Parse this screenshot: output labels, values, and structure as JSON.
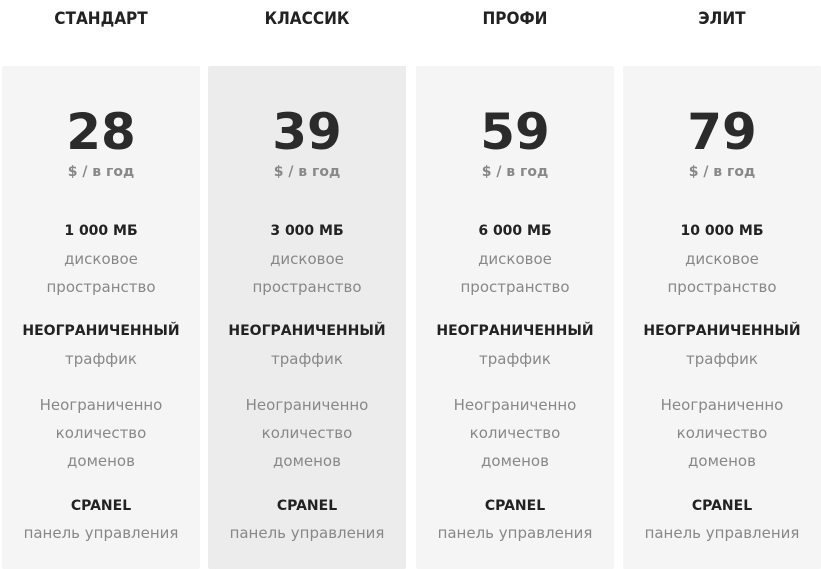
{
  "plans": [
    {
      "name": "СТАНДАРТ",
      "price": "28",
      "unit": "$ / в год",
      "disk_value": "1 000 МБ",
      "disk_line1": "дисковое",
      "disk_line2": "пространство",
      "traffic_value": "НЕОГРАНИЧЕННЫЙ",
      "traffic_label": "траффик",
      "domains_line1": "Неограниченно",
      "domains_line2": "количество",
      "domains_line3": "доменов",
      "panel_value": "CPANEL",
      "panel_label": "панель управления",
      "highlighted": false
    },
    {
      "name": "КЛАССИК",
      "price": "39",
      "unit": "$ / в год",
      "disk_value": "3 000 МБ",
      "disk_line1": "дисковое",
      "disk_line2": "пространство",
      "traffic_value": "НЕОГРАНИЧЕННЫЙ",
      "traffic_label": "траффик",
      "domains_line1": "Неограниченно",
      "domains_line2": "количество",
      "domains_line3": "доменов",
      "panel_value": "CPANEL",
      "panel_label": "панель управления",
      "highlighted": true
    },
    {
      "name": "ПРОФИ",
      "price": "59",
      "unit": "$ / в год",
      "disk_value": "6 000 МБ",
      "disk_line1": "дисковое",
      "disk_line2": "пространство",
      "traffic_value": "НЕОГРАНИЧЕННЫЙ",
      "traffic_label": "траффик",
      "domains_line1": "Неограниченно",
      "domains_line2": "количество",
      "domains_line3": "доменов",
      "panel_value": "CPANEL",
      "panel_label": "панель управления",
      "highlighted": false
    },
    {
      "name": "ЭЛИТ",
      "price": "79",
      "unit": "$ / в год",
      "disk_value": "10 000 МБ",
      "disk_line1": "дисковое",
      "disk_line2": "пространство",
      "traffic_value": "НЕОГРАНИЧЕННЫЙ",
      "traffic_label": "траффик",
      "domains_line1": "Неограниченно",
      "domains_line2": "количество",
      "domains_line3": "доменов",
      "panel_value": "CPANEL",
      "panel_label": "панель управления",
      "highlighted": false
    }
  ],
  "colors": {
    "card": "#f5f5f5",
    "card_highlighted": "#ececec",
    "text_dark": "#222222",
    "text_muted": "#888888"
  }
}
